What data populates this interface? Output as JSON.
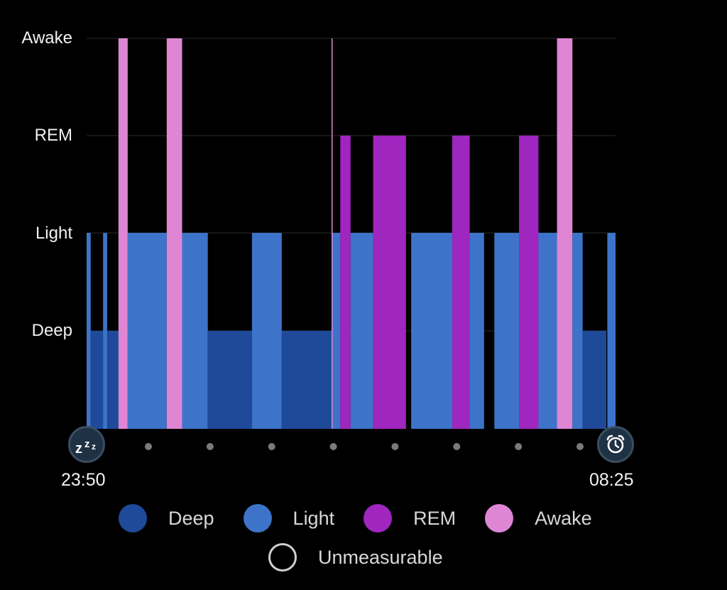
{
  "chart_data": {
    "type": "hypnogram",
    "stages": [
      "Deep",
      "Light",
      "REM",
      "Awake"
    ],
    "y_labels": [
      "Awake",
      "REM",
      "Light",
      "Deep"
    ],
    "start_time": "23:50",
    "end_time": "08:25",
    "start_minutes": 0,
    "end_minutes": 515,
    "segments": [
      {
        "start": 0,
        "end": 4,
        "stage": "Light"
      },
      {
        "start": 4,
        "end": 16,
        "stage": "Deep"
      },
      {
        "start": 16,
        "end": 20,
        "stage": "Light"
      },
      {
        "start": 20,
        "end": 31,
        "stage": "Deep"
      },
      {
        "start": 31,
        "end": 40,
        "stage": "Awake"
      },
      {
        "start": 40,
        "end": 78,
        "stage": "Light"
      },
      {
        "start": 78,
        "end": 93,
        "stage": "Awake"
      },
      {
        "start": 93,
        "end": 118,
        "stage": "Light"
      },
      {
        "start": 118,
        "end": 161,
        "stage": "Deep"
      },
      {
        "start": 161,
        "end": 190,
        "stage": "Light"
      },
      {
        "start": 190,
        "end": 239,
        "stage": "Deep"
      },
      {
        "start": 239,
        "end": 247,
        "stage": "Light"
      },
      {
        "start": 247,
        "end": 257,
        "stage": "REM"
      },
      {
        "start": 257,
        "end": 279,
        "stage": "Light"
      },
      {
        "start": 279,
        "end": 311,
        "stage": "REM"
      },
      {
        "start": 311,
        "end": 316,
        "stage": "Unmeasurable"
      },
      {
        "start": 316,
        "end": 356,
        "stage": "Light"
      },
      {
        "start": 356,
        "end": 373,
        "stage": "REM"
      },
      {
        "start": 373,
        "end": 387,
        "stage": "Light"
      },
      {
        "start": 387,
        "end": 397,
        "stage": "Unmeasurable"
      },
      {
        "start": 397,
        "end": 421,
        "stage": "Light"
      },
      {
        "start": 421,
        "end": 440,
        "stage": "REM"
      },
      {
        "start": 440,
        "end": 458,
        "stage": "Light"
      },
      {
        "start": 458,
        "end": 473,
        "stage": "Awake"
      },
      {
        "start": 473,
        "end": 483,
        "stage": "Light"
      },
      {
        "start": 483,
        "end": 506,
        "stage": "Deep"
      },
      {
        "start": 506,
        "end": 507,
        "stage": "Unmeasurable"
      },
      {
        "start": 507,
        "end": 515,
        "stage": "Light"
      }
    ],
    "marker_minute": 239,
    "tick_dots": 8,
    "legend_position": "bottom"
  },
  "colors": {
    "Deep": "#1f4a9a",
    "Light": "#3d74c9",
    "REM": "#9f26be",
    "Awake": "#de86d4",
    "Unmeasurable": "#000000",
    "grid": "#2a2a2a",
    "marker_line": "#de86d4",
    "tick_dot": "#7a7a7a"
  },
  "icons": {
    "start": "sleep-zzz-icon",
    "end": "alarm-clock-icon"
  },
  "legend": [
    {
      "label": "Deep",
      "key": "Deep"
    },
    {
      "label": "Light",
      "key": "Light"
    },
    {
      "label": "REM",
      "key": "REM"
    },
    {
      "label": "Awake",
      "key": "Awake"
    }
  ],
  "legend_unmeasurable": {
    "label": "Unmeasurable"
  }
}
